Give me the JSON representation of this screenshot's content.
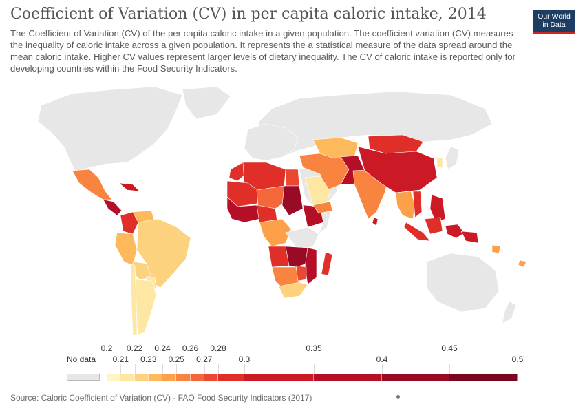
{
  "header": {
    "title": "Coefficient of Variation (CV) in per capita caloric intake, 2014",
    "subtitle": "The Coefficient of Variation (CV) of the per capita caloric intake in a given population. The coefficient variation (CV) measures the inequality of caloric intake across a given population. It represents the a statistical measure of the data spread around the mean caloric intake. Higher CV values represent larger levels of dietary inequality. The CV of caloric intake is reported only for developing countries within the Food Security Indicators.",
    "logo_line1": "Our World",
    "logo_line2": "in Data"
  },
  "legend": {
    "no_data_label": "No data",
    "no_data_color": "#e7e7e7",
    "bins": [
      {
        "from": 0.2,
        "to": 0.21,
        "color": "#fff5c2"
      },
      {
        "from": 0.21,
        "to": 0.22,
        "color": "#fde7a2"
      },
      {
        "from": 0.22,
        "to": 0.23,
        "color": "#fdd27e"
      },
      {
        "from": 0.23,
        "to": 0.24,
        "color": "#fdb95c"
      },
      {
        "from": 0.24,
        "to": 0.25,
        "color": "#fca04a"
      },
      {
        "from": 0.25,
        "to": 0.26,
        "color": "#f88440"
      },
      {
        "from": 0.26,
        "to": 0.27,
        "color": "#f3673a"
      },
      {
        "from": 0.27,
        "to": 0.28,
        "color": "#ea4830"
      },
      {
        "from": 0.28,
        "to": 0.3,
        "color": "#df2f28"
      },
      {
        "from": 0.3,
        "to": 0.35,
        "color": "#cb1a26"
      },
      {
        "from": 0.35,
        "to": 0.4,
        "color": "#b40f26"
      },
      {
        "from": 0.4,
        "to": 0.45,
        "color": "#990a24"
      },
      {
        "from": 0.45,
        "to": 0.5,
        "color": "#7a0620"
      }
    ],
    "ticks_top": [
      "0.2",
      "0.22",
      "0.24",
      "0.26",
      "0.28",
      "0.35",
      "0.45"
    ],
    "ticks_bottom": [
      "0.21",
      "0.23",
      "0.25",
      "0.27",
      "0.3",
      "0.4",
      "0.5"
    ]
  },
  "footer": {
    "source": "Source: Caloric Coefficient of Variation (CV) - FAO Food Security Indicators (2017)"
  },
  "map_colors": {
    "nodata": "#e7e7e7",
    "c021": "#fde7a2",
    "c023": "#fdd27e",
    "c024": "#fdb95c",
    "c025": "#fca04a",
    "c026": "#f88440",
    "c027": "#f3673a",
    "c028": "#ea4830",
    "c030": "#df2f28",
    "c035": "#cb1a26",
    "c040": "#b40f26",
    "c045": "#990a24"
  }
}
